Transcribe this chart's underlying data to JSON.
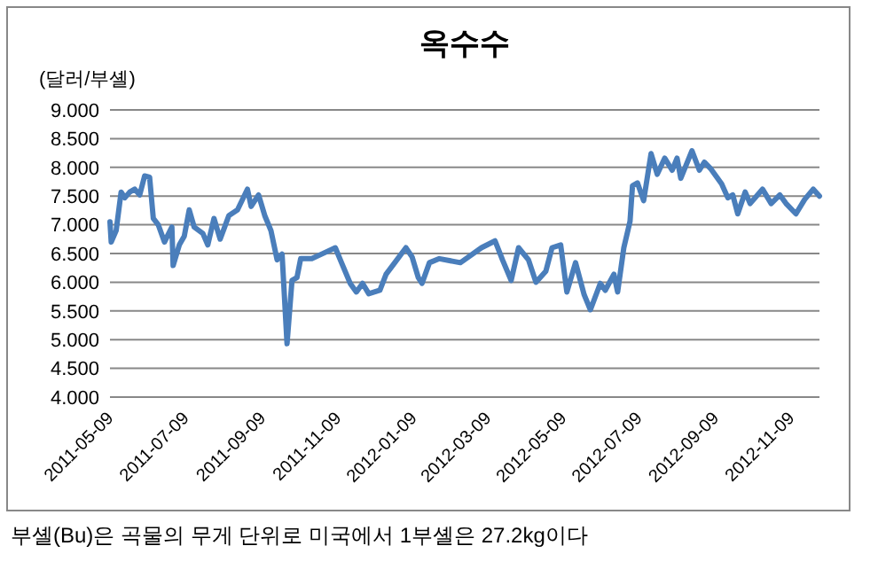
{
  "chart_data": {
    "type": "line",
    "title": "옥수수",
    "ylabel": "(달러/부셸)",
    "annotations": [
      "부셸(Bu)은 곡물의 무게 단위로 미국에서 1부셸은 27.2kg이다"
    ],
    "x": [
      "2011-05-09",
      "2011-05-10",
      "2011-05-14",
      "2011-05-18",
      "2011-05-21",
      "2011-05-25",
      "2011-05-29",
      "2011-06-02",
      "2011-06-06",
      "2011-06-10",
      "2011-06-13",
      "2011-06-17",
      "2011-06-22",
      "2011-06-28",
      "2011-06-29",
      "2011-07-04",
      "2011-07-08",
      "2011-07-12",
      "2011-07-16",
      "2011-07-23",
      "2011-07-27",
      "2011-08-01",
      "2011-08-06",
      "2011-08-13",
      "2011-08-20",
      "2011-08-28",
      "2011-08-31",
      "2011-09-06",
      "2011-09-11",
      "2011-09-16",
      "2011-09-21",
      "2011-09-25",
      "2011-09-29",
      "2011-10-03",
      "2011-10-07",
      "2011-10-10",
      "2011-10-19",
      "2011-10-27",
      "2011-11-07",
      "2011-11-12",
      "2011-11-19",
      "2011-11-24",
      "2011-11-29",
      "2011-12-04",
      "2011-12-13",
      "2011-12-18",
      "2011-12-25",
      "2012-01-03",
      "2012-01-08",
      "2012-01-13",
      "2012-01-16",
      "2012-01-22",
      "2012-01-30",
      "2012-02-16",
      "2012-03-04",
      "2012-03-15",
      "2012-03-21",
      "2012-03-28",
      "2012-04-03",
      "2012-04-11",
      "2012-04-17",
      "2012-04-25",
      "2012-04-30",
      "2012-05-07",
      "2012-05-12",
      "2012-05-19",
      "2012-05-26",
      "2012-05-31",
      "2012-06-08",
      "2012-06-12",
      "2012-06-19",
      "2012-06-22",
      "2012-06-27",
      "2012-07-02",
      "2012-07-04",
      "2012-07-08",
      "2012-07-13",
      "2012-07-19",
      "2012-07-24",
      "2012-07-30",
      "2012-08-05",
      "2012-08-09",
      "2012-08-12",
      "2012-08-21",
      "2012-08-27",
      "2012-08-31",
      "2012-09-05",
      "2012-09-14",
      "2012-09-19",
      "2012-09-23",
      "2012-09-27",
      "2012-10-03",
      "2012-10-07",
      "2012-10-17",
      "2012-10-24",
      "2012-10-31",
      "2012-11-05",
      "2012-11-13",
      "2012-11-20",
      "2012-11-27",
      "2012-12-02"
    ],
    "series": [
      {
        "color": "#4a7ebb",
        "values": [
          7.05,
          6.7,
          6.9,
          7.57,
          7.47,
          7.57,
          7.62,
          7.52,
          7.85,
          7.83,
          7.11,
          7.0,
          6.7,
          6.96,
          6.29,
          6.65,
          6.8,
          7.26,
          6.96,
          6.85,
          6.65,
          7.11,
          6.75,
          7.16,
          7.26,
          7.62,
          7.32,
          7.52,
          7.16,
          6.9,
          6.39,
          6.49,
          4.93,
          6.03,
          6.08,
          6.41,
          6.41,
          6.49,
          6.6,
          6.34,
          5.98,
          5.83,
          5.98,
          5.8,
          5.86,
          6.14,
          6.34,
          6.6,
          6.44,
          6.08,
          5.98,
          6.34,
          6.41,
          6.34,
          6.6,
          6.72,
          6.39,
          6.03,
          6.6,
          6.39,
          6.0,
          6.19,
          6.6,
          6.65,
          5.83,
          6.34,
          5.78,
          5.52,
          5.98,
          5.86,
          6.14,
          5.83,
          6.6,
          7.06,
          7.68,
          7.73,
          7.42,
          8.24,
          7.88,
          8.16,
          7.95,
          8.16,
          7.81,
          8.29,
          7.95,
          8.09,
          7.98,
          7.71,
          7.47,
          7.52,
          7.19,
          7.57,
          7.37,
          7.62,
          7.37,
          7.52,
          7.37,
          7.19,
          7.44,
          7.62,
          7.5
        ]
      }
    ],
    "xlim": [
      "2011-05-09",
      "2012-12-02"
    ],
    "xticks": [
      "2011-05-09",
      "2011-07-09",
      "2011-09-09",
      "2011-11-09",
      "2012-01-09",
      "2012-03-09",
      "2012-05-09",
      "2012-07-09",
      "2012-09-09",
      "2012-11-09"
    ],
    "ylim": [
      4,
      9
    ],
    "yticks": [
      {
        "value": 4,
        "label": "4.000"
      },
      {
        "value": 4.5,
        "label": "4.500"
      },
      {
        "value": 5,
        "label": "5.000"
      },
      {
        "value": 5.5,
        "label": "5.500"
      },
      {
        "value": 6,
        "label": "6.000"
      },
      {
        "value": 6.5,
        "label": "6.500"
      },
      {
        "value": 7,
        "label": "7.000"
      },
      {
        "value": 7.5,
        "label": "7.500"
      },
      {
        "value": 8,
        "label": "8.000"
      },
      {
        "value": 8.5,
        "label": "8.500"
      },
      {
        "value": 9,
        "label": "9.000"
      }
    ],
    "grid": "y",
    "marker": "none",
    "line_style": "solid"
  }
}
